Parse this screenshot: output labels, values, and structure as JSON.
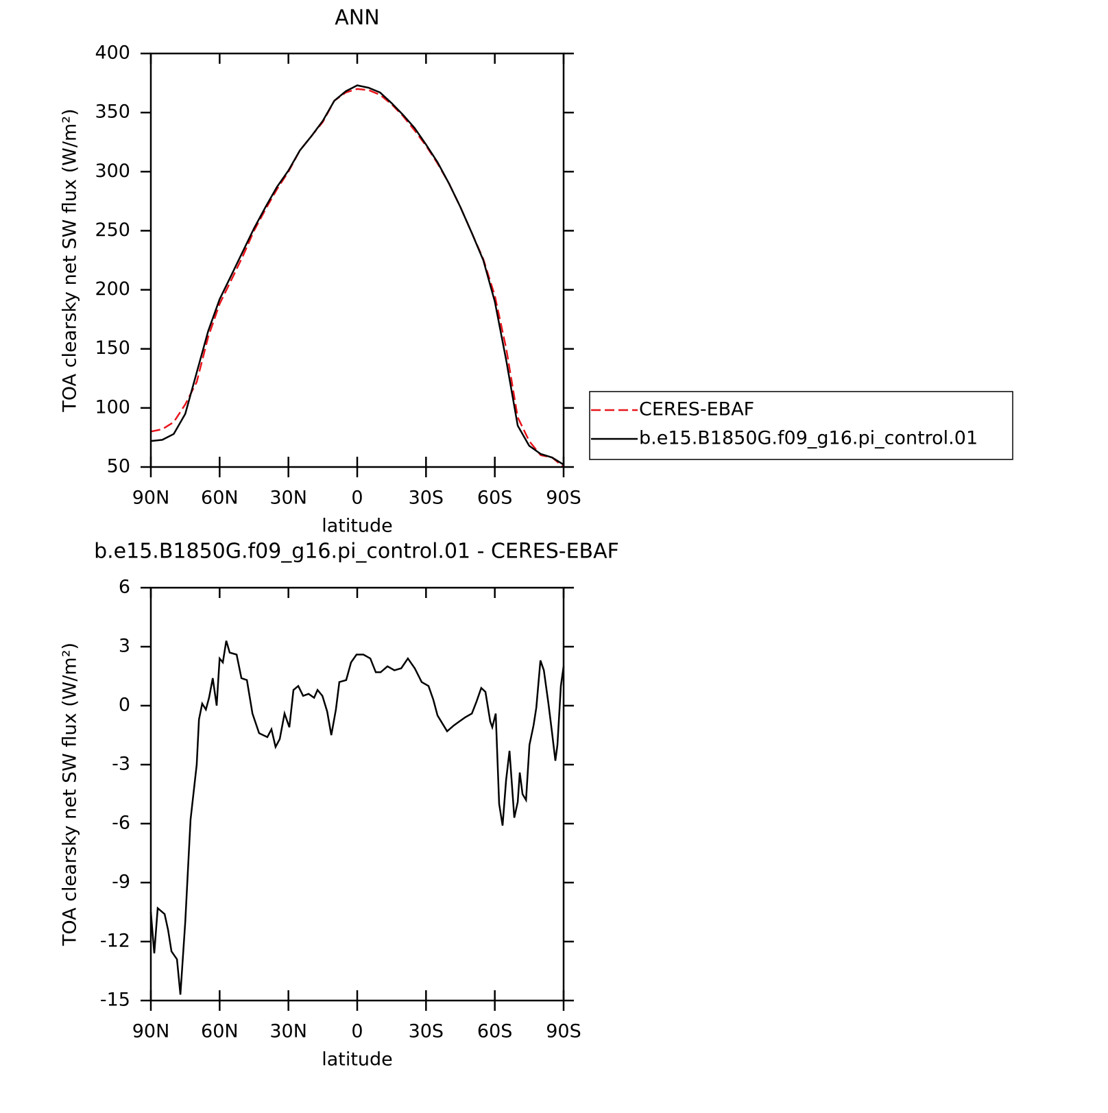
{
  "chart_data": [
    {
      "type": "line",
      "title": "ANN",
      "xlabel": "latitude",
      "ylabel": "TOA clearsky net SW flux (W/m²)",
      "x": [
        90,
        85,
        80,
        75,
        70,
        65,
        60,
        55,
        50,
        45,
        40,
        35,
        30,
        25,
        20,
        15,
        10,
        5,
        0,
        -5,
        -10,
        -15,
        -20,
        -25,
        -30,
        -35,
        -40,
        -45,
        -50,
        -55,
        -60,
        -65,
        -70,
        -75,
        -80,
        -85,
        -90
      ],
      "series": [
        {
          "name": "CERES-EBAF",
          "color": "#e8141b",
          "linestyle": "dashed",
          "values": [
            80,
            82,
            88,
            103,
            122,
            160,
            188,
            208,
            228,
            250,
            268,
            285,
            300,
            318,
            330,
            342,
            360,
            367,
            370,
            369,
            365,
            357,
            347,
            335,
            322,
            307,
            290,
            270,
            248,
            226,
            195,
            150,
            92,
            72,
            60,
            58,
            50
          ]
        },
        {
          "name": "b.e15.B1850G.f09_g16.pi_control.01",
          "color": "#000000",
          "linestyle": "solid",
          "values": [
            72,
            73,
            78,
            95,
            130,
            165,
            192,
            212,
            232,
            252,
            270,
            287,
            301,
            318,
            330,
            343,
            360,
            368,
            373,
            371,
            367,
            358,
            348,
            337,
            323,
            308,
            290,
            270,
            248,
            225,
            190,
            140,
            85,
            68,
            61,
            58,
            52
          ]
        }
      ],
      "xlim": [
        90,
        -90
      ],
      "xticks": [
        {
          "value": 90,
          "label": "90N"
        },
        {
          "value": 60,
          "label": "60N"
        },
        {
          "value": 30,
          "label": "30N"
        },
        0,
        {
          "value": -30,
          "label": "30S"
        },
        {
          "value": -60,
          "label": "60S"
        },
        {
          "value": -90,
          "label": "90S"
        }
      ],
      "ylim": [
        50,
        400
      ],
      "yticks": [
        50,
        100,
        150,
        200,
        250,
        300,
        350,
        400
      ],
      "legend": "right"
    },
    {
      "type": "line",
      "title": "b.e15.B1850G.f09_g16.pi_control.01 - CERES-EBAF",
      "xlabel": "latitude",
      "ylabel": "TOA clearsky net SW flux (W/m²)",
      "x": [
        90,
        88.5,
        87,
        84,
        82.5,
        81,
        78.6,
        77.1,
        75,
        72.7,
        70,
        69,
        67.6,
        66,
        64.6,
        63,
        61.3,
        60,
        58.6,
        57.1,
        55.6,
        52.6,
        50.5,
        48.1,
        45.7,
        42.8,
        39.2,
        37.4,
        35.6,
        33.8,
        31.7,
        29.6,
        27.8,
        25.7,
        23.6,
        21.2,
        18.8,
        17.3,
        15.2,
        13.1,
        11.3,
        9.3,
        7.8,
        4.8,
        2.7,
        0.3,
        -2.7,
        -5.7,
        -8.1,
        -10.2,
        -13.2,
        -16.2,
        -19.2,
        -22.1,
        -25.1,
        -28.1,
        -31.1,
        -33.2,
        -35,
        -37.1,
        -39.2,
        -42.2,
        -44.6,
        -47,
        -50,
        -52,
        -54.1,
        -55.9,
        -58,
        -58.9,
        -60.4,
        -61.9,
        -63.4,
        -64.9,
        -66.4,
        -68.5,
        -70,
        -70.9,
        -72.1,
        -73.6,
        -75.1,
        -76.9,
        -78.1,
        -79.9,
        -81.4,
        -83.4,
        -84.9,
        -86.4,
        -87.3,
        -88.8,
        -90
      ],
      "series": [
        {
          "color": "#000000",
          "linestyle": "solid",
          "values": [
            -10.5,
            -12.6,
            -10.3,
            -10.6,
            -11.4,
            -12.5,
            -12.9,
            -14.7,
            -11,
            -5.8,
            -3,
            -0.7,
            0.1,
            -0.2,
            0.4,
            1.4,
            0,
            2.4,
            2.2,
            3.3,
            2.7,
            2.6,
            1.4,
            1.3,
            -0.4,
            -1.4,
            -1.6,
            -1.2,
            -2.1,
            -1.7,
            -0.4,
            -1.1,
            0.8,
            1,
            0.5,
            0.6,
            0.4,
            0.8,
            0.5,
            -0.3,
            -1.5,
            -0.2,
            1.2,
            1.3,
            2.2,
            2.6,
            2.6,
            2.4,
            1.7,
            1.7,
            2,
            1.8,
            1.9,
            2.4,
            1.9,
            1.2,
            1,
            0.3,
            -0.5,
            -0.9,
            -1.3,
            -1,
            -0.8,
            -0.6,
            -0.4,
            0.2,
            0.9,
            0.7,
            -0.8,
            -1.1,
            -0.4,
            -5,
            -6.1,
            -3.8,
            -2.3,
            -5.7,
            -4.9,
            -3.4,
            -4.5,
            -4.8,
            -2,
            -1,
            -0.1,
            2.3,
            1.8,
            0.1,
            -1.3,
            -2.8,
            -2,
            1,
            2
          ]
        }
      ],
      "xlim": [
        90,
        -90
      ],
      "xticks": [
        {
          "value": 90,
          "label": "90N"
        },
        {
          "value": 60,
          "label": "60N"
        },
        {
          "value": 30,
          "label": "30N"
        },
        0,
        {
          "value": -30,
          "label": "30S"
        },
        {
          "value": -60,
          "label": "60S"
        },
        {
          "value": -90,
          "label": "90S"
        }
      ],
      "ylim": [
        -15,
        6
      ],
      "yticks": [
        -15,
        -12,
        -9,
        -6,
        -3,
        0,
        3,
        6
      ]
    }
  ]
}
